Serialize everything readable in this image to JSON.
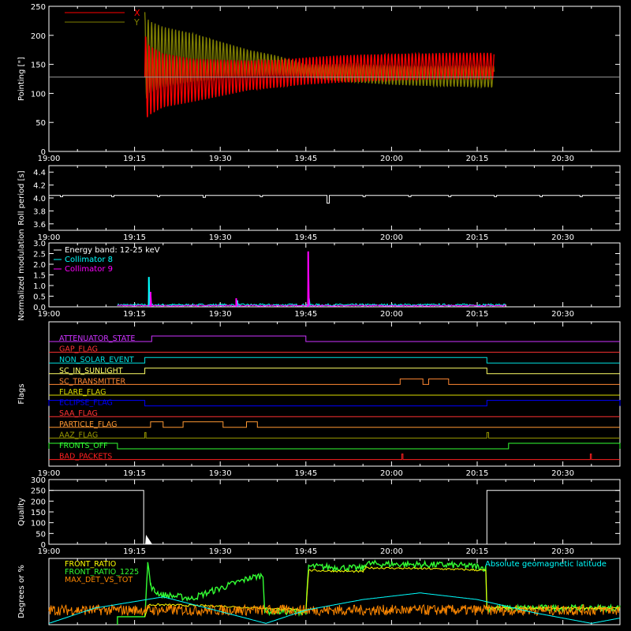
{
  "time_ticks": [
    "19:00",
    "19:15",
    "19:30",
    "19:45",
    "20:00",
    "20:15",
    "20:30"
  ],
  "chart_data": [
    {
      "id": "pointing",
      "type": "line",
      "ylabel": "Pointing [\"]",
      "ylim": [
        0,
        250
      ],
      "yticks": [
        "0",
        "50",
        "100",
        "150",
        "200",
        "250"
      ],
      "x_unit": "minutes after 19:00",
      "xlim": [
        0,
        100
      ],
      "reference_line": 128,
      "legend": [
        {
          "name": "X",
          "color": "#ff0000"
        },
        {
          "name": "Y",
          "color": "#7f7f00"
        }
      ],
      "series": [
        {
          "name": "X",
          "color": "#ff0000",
          "envelope_x": [
            16.8,
            17.5,
            20,
            25,
            30,
            35,
            40,
            45,
            50,
            55,
            60,
            65,
            70,
            75,
            78
          ],
          "envelope_low": [
            50,
            60,
            75,
            85,
            95,
            105,
            110,
            115,
            118,
            120,
            122,
            123,
            124,
            124,
            124
          ],
          "envelope_high": [
            205,
            185,
            170,
            160,
            158,
            157,
            158,
            162,
            165,
            167,
            168,
            169,
            170,
            170,
            170
          ]
        },
        {
          "name": "Y",
          "color": "#7f7f00",
          "envelope_x": [
            16.8,
            17.5,
            20,
            25,
            30,
            35,
            40,
            45,
            50,
            55,
            60,
            65,
            70,
            75,
            78
          ],
          "envelope_low": [
            85,
            100,
            110,
            118,
            125,
            128,
            130,
            128,
            122,
            118,
            115,
            113,
            112,
            111,
            110
          ],
          "envelope_high": [
            240,
            225,
            215,
            205,
            190,
            175,
            165,
            150,
            150,
            150,
            149,
            148,
            148,
            148,
            148
          ]
        }
      ]
    },
    {
      "id": "roll",
      "type": "line",
      "ylabel": "Roll period [s]",
      "ylim": [
        3.5,
        4.5
      ],
      "yticks": [
        "3.6",
        "3.8",
        "4.0",
        "4.2",
        "4.4"
      ],
      "xlim": [
        0,
        100
      ],
      "series": [
        {
          "name": "roll",
          "color": "#ffffff",
          "baseline": 4.04,
          "dips": [
            [
              2,
              4.02
            ],
            [
              11,
              4.02
            ],
            [
              19,
              4.02
            ],
            [
              27,
              4.01
            ],
            [
              37,
              4.02
            ],
            [
              48.7,
              3.92
            ],
            [
              55,
              4.02
            ],
            [
              63,
              4.02
            ],
            [
              70,
              4.02
            ],
            [
              78,
              4.02
            ],
            [
              86,
              4.02
            ],
            [
              93,
              4.02
            ]
          ]
        }
      ]
    },
    {
      "id": "modulation",
      "type": "line",
      "ylabel": "Normalized modulation",
      "ylim": [
        0,
        3.0
      ],
      "yticks": [
        "0.0",
        "0.5",
        "1.0",
        "1.5",
        "2.0",
        "2.5",
        "3.0"
      ],
      "xlim": [
        0,
        100
      ],
      "legend_title": "Energy band: 12-25 keV",
      "legend": [
        {
          "name": "Collimator 8",
          "color": "#00ffff"
        },
        {
          "name": "Collimator 9",
          "color": "#ff00ff"
        }
      ],
      "series": [
        {
          "name": "Collimator 8",
          "color": "#00ffff",
          "range": [
            12,
            80
          ],
          "base": 0.1,
          "spikes": [
            [
              17.5,
              1.4
            ],
            [
              33,
              0.3
            ],
            [
              45.5,
              0.4
            ]
          ]
        },
        {
          "name": "Collimator 9",
          "color": "#ff00ff",
          "range": [
            12,
            80
          ],
          "base": 0.06,
          "spikes": [
            [
              17.8,
              0.7
            ],
            [
              32.8,
              0.4
            ],
            [
              45.4,
              2.6
            ]
          ]
        }
      ]
    },
    {
      "id": "flags",
      "type": "step",
      "ylabel": "Flags",
      "xlim": [
        0,
        100
      ],
      "flags": [
        {
          "name": "ATTENUATOR_STATE",
          "color": "#cc33ff",
          "on": [
            [
              18,
              45
            ]
          ]
        },
        {
          "name": "GAP_FLAG",
          "color": "#ff3333",
          "on": []
        },
        {
          "name": "NON_SOLAR_EVENT",
          "color": "#00e0e0",
          "on": [
            [
              16.8,
              76.7
            ]
          ]
        },
        {
          "name": "SC_IN_SUNLIGHT",
          "color": "#ffff66",
          "on": [
            [
              16.8,
              76.7
            ]
          ]
        },
        {
          "name": "SC_TRANSMITTER",
          "color": "#ff8833",
          "on": [
            [
              61.5,
              65.5
            ],
            [
              66.5,
              70
            ]
          ]
        },
        {
          "name": "FLARE_FLAG",
          "color": "#dddd00",
          "on": []
        },
        {
          "name": "ECLIPSE_FLAG",
          "color": "#0000ff",
          "on": [
            [
              0,
              16.8
            ],
            [
              76.7,
              100
            ]
          ]
        },
        {
          "name": "SAA_FLAG",
          "color": "#ff3333",
          "on": []
        },
        {
          "name": "PARTICLE_FLAG",
          "color": "#ff9933",
          "on": [
            [
              17.8,
              20
            ],
            [
              23.5,
              30.5
            ],
            [
              34.6,
              36.5
            ]
          ]
        },
        {
          "name": "AAZ_FLAG",
          "color": "#9a9a00",
          "on": [
            [
              16.8,
              17
            ],
            [
              76.7,
              77
            ]
          ]
        },
        {
          "name": "FRONTS_OFF",
          "color": "#33ff33",
          "on": [
            [
              0,
              12
            ],
            [
              80.5,
              100
            ]
          ]
        },
        {
          "name": "BAD_PACKETS",
          "color": "#ff2020",
          "on": [
            [
              61.8,
              62
            ],
            [
              94.8,
              95
            ]
          ]
        }
      ]
    },
    {
      "id": "quality",
      "type": "step",
      "ylabel": "Quality",
      "ylim": [
        0,
        300
      ],
      "yticks": [
        "0",
        "50",
        "100",
        "150",
        "200",
        "250",
        "300"
      ],
      "xlim": [
        0,
        100
      ],
      "series": [
        {
          "name": "quality",
          "color": "#ffffff",
          "steps": [
            [
              0,
              250
            ],
            [
              16.6,
              250
            ],
            [
              16.6,
              0
            ],
            [
              76.7,
              0
            ],
            [
              76.7,
              250
            ],
            [
              100,
              250
            ]
          ]
        }
      ]
    },
    {
      "id": "ratios",
      "type": "line",
      "ylabel": "Degrees or %",
      "ylim": [
        0,
        100
      ],
      "xlim": [
        0,
        100
      ],
      "legend": [
        {
          "name": "FRONT_RATIO",
          "color": "#ffff00"
        },
        {
          "name": "FRONT_RATIO_1225",
          "color": "#33ff33"
        },
        {
          "name": "MAX_DET_VS_TOT",
          "color": "#ff8800"
        }
      ],
      "right_label": {
        "name": "Absolute geomagnetic latitude",
        "color": "#00ffff"
      },
      "series": [
        {
          "name": "FRONT_RATIO_1225",
          "color": "#33ff33",
          "x": [
            12,
            12,
            16.8,
            17.3,
            17.8,
            18.5,
            20,
            25,
            30,
            35,
            37.5,
            37.8,
            45,
            45.5,
            55,
            55.5,
            70,
            75,
            76.5,
            76.7,
            100
          ],
          "y": [
            0,
            12,
            12,
            95,
            60,
            50,
            45,
            40,
            55,
            70,
            75,
            20,
            20,
            88,
            85,
            92,
            90,
            88,
            85,
            25,
            25
          ]
        },
        {
          "name": "FRONT_RATIO",
          "color": "#ffff00",
          "x": [
            16.8,
            17.5,
            20,
            30,
            37.5,
            45,
            45.5,
            55,
            55.5,
            70,
            76.5,
            76.7,
            100
          ],
          "y": [
            12,
            30,
            30,
            28,
            25,
            22,
            82,
            80,
            86,
            84,
            82,
            25,
            25
          ]
        },
        {
          "name": "MAX_DET_VS_TOT",
          "color": "#ff8800",
          "base": 22,
          "noise": 8
        },
        {
          "name": "Absolute geomagnetic latitude",
          "color": "#00ffff",
          "x": [
            0,
            8,
            20,
            30,
            38,
            45,
            55,
            65,
            75,
            85,
            95,
            100
          ],
          "y": [
            2,
            25,
            42,
            20,
            2,
            22,
            38,
            48,
            38,
            18,
            2,
            10
          ]
        }
      ]
    }
  ]
}
